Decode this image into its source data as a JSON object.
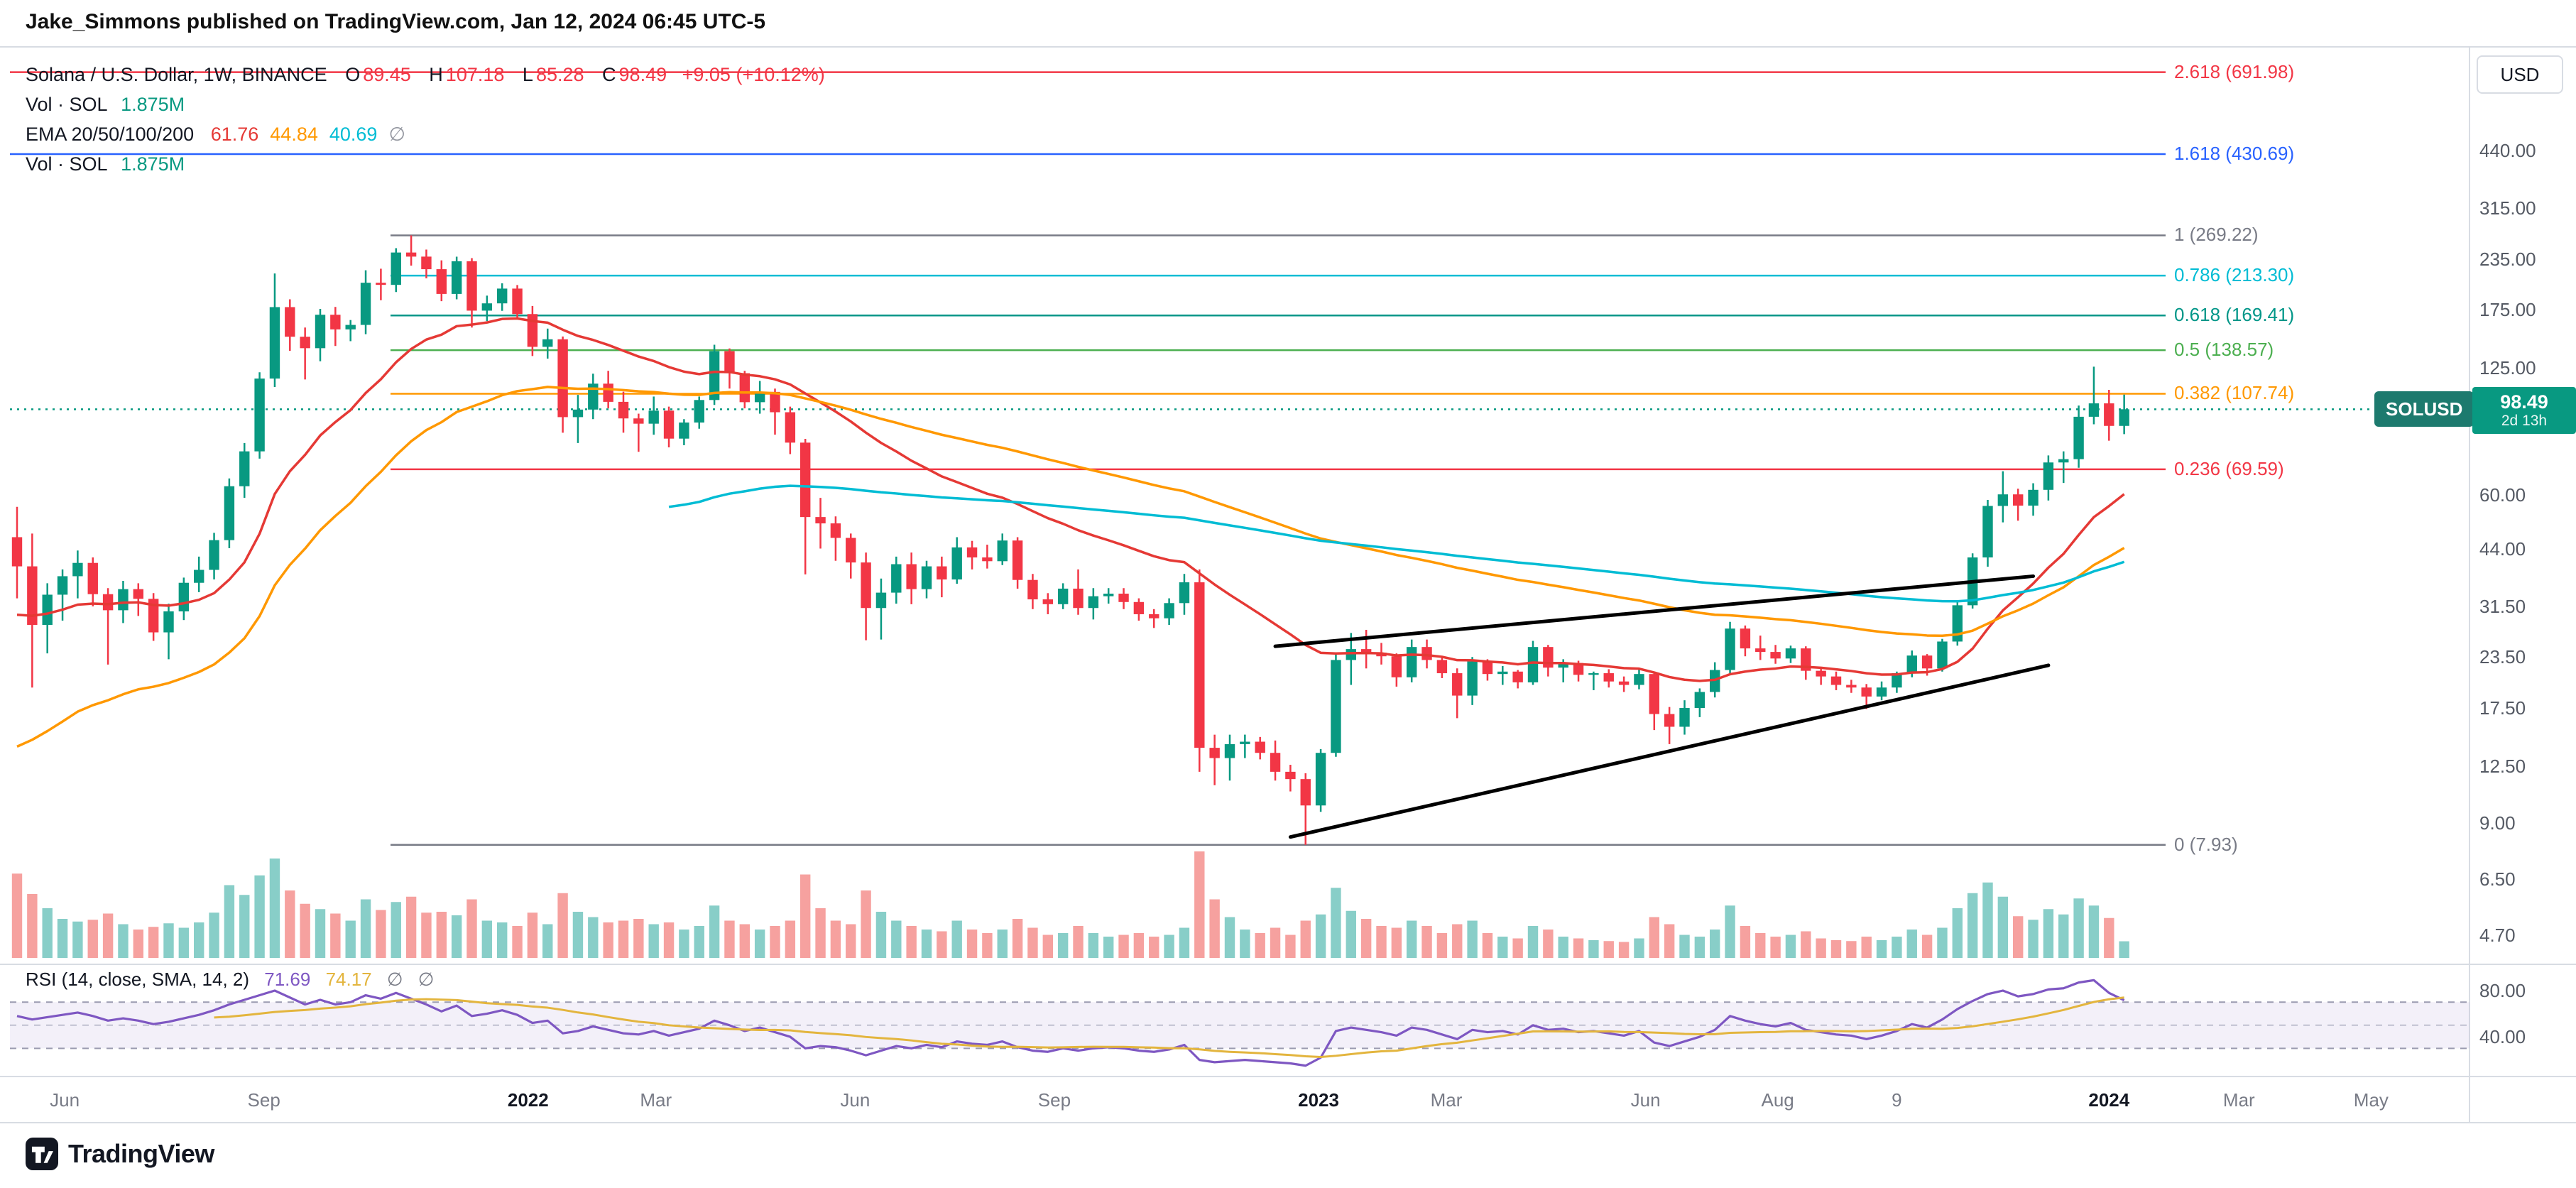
{
  "header": {
    "attribution": "Jake_Simmons published on TradingView.com, Jan 12, 2024 06:45 UTC-5"
  },
  "colors": {
    "up": "#089981",
    "down": "#f23645",
    "ema20": "#e53935",
    "ema50": "#ff9800",
    "ema100": "#00bcd4",
    "rsi": "#7e57c2",
    "rsi_sma": "#e3b53e",
    "badge_dark": "#1d7a6e",
    "text": "#131722",
    "muted": "#787b86",
    "separator": "#d8dce3",
    "vol_up": "rgba(38,166,154,0.55)",
    "vol_down": "rgba(239,83,80,0.55)",
    "rsi_band_fill": "rgba(126,87,194,0.09)",
    "rsi_band_line": "#9b9bb0"
  },
  "legend": {
    "symbol_title": "Solana / U.S. Dollar, 1W, BINANCE",
    "ohlc": {
      "o_label": "O",
      "open": "89.45",
      "h_label": "H",
      "high": "107.18",
      "l_label": "L",
      "low": "85.28",
      "c_label": "C",
      "close": "98.49",
      "change": "+9.05 (+10.12%)"
    },
    "vol_label": "Vol · SOL",
    "vol_value": "1.875M",
    "ema_label": "EMA 20/50/100/200",
    "ema_values": [
      {
        "value": "61.76",
        "color": "#e53935"
      },
      {
        "value": "44.84",
        "color": "#ff9800"
      },
      {
        "value": "40.69",
        "color": "#00bcd4"
      },
      {
        "value": "∅",
        "color": "#9598a1"
      }
    ],
    "vol2_label": "Vol · SOL",
    "vol2_value": "1.875M"
  },
  "rsi_legend": {
    "label": "RSI (14, close, SMA, 14, 2)",
    "value": "71.69",
    "sma_value": "74.17",
    "null1": "∅",
    "null2": "∅"
  },
  "price_axis": {
    "currency": "USD",
    "labels": [
      "440.00",
      "315.00",
      "235.00",
      "175.00",
      "125.00",
      "60.00",
      "44.00",
      "31.50",
      "23.50",
      "17.50",
      "12.50",
      "9.00",
      "6.50",
      "4.70"
    ]
  },
  "rsi_axis": [
    {
      "label": "80.00",
      "value": 80
    },
    {
      "label": "40.00",
      "value": 40
    }
  ],
  "price_tag": {
    "symbol": "SOLUSD",
    "price": "98.49",
    "countdown": "2d 13h"
  },
  "time_axis": [
    {
      "label": "Jun",
      "date": "2021-06-01",
      "major": false
    },
    {
      "label": "Sep",
      "date": "2021-09-01",
      "major": false
    },
    {
      "label": "2022",
      "date": "2022-01-01",
      "major": true
    },
    {
      "label": "Mar",
      "date": "2022-03-01",
      "major": false
    },
    {
      "label": "Jun",
      "date": "2022-06-01",
      "major": false
    },
    {
      "label": "Sep",
      "date": "2022-09-01",
      "major": false
    },
    {
      "label": "2023",
      "date": "2023-01-01",
      "major": true
    },
    {
      "label": "Mar",
      "date": "2023-03-01",
      "major": false
    },
    {
      "label": "Jun",
      "date": "2023-06-01",
      "major": false
    },
    {
      "label": "Aug",
      "date": "2023-08-01",
      "major": false
    },
    {
      "label": "9",
      "date": "2023-09-25",
      "major": false
    },
    {
      "label": "2024",
      "date": "2024-01-01",
      "major": true
    },
    {
      "label": "Mar",
      "date": "2024-03-01",
      "major": false
    },
    {
      "label": "May",
      "date": "2024-05-01",
      "major": false
    }
  ],
  "fib_levels": [
    {
      "label": "2.618 (691.98)",
      "price": 691.98,
      "color": "#f23645",
      "extend_left": true
    },
    {
      "label": "1.618 (430.69)",
      "price": 430.69,
      "color": "#2962ff",
      "extend_left": true
    },
    {
      "label": "1 (269.22)",
      "price": 269.22,
      "color": "#787b86",
      "extend_left": false
    },
    {
      "label": "0.786 (213.30)",
      "price": 213.3,
      "color": "#00bcd4",
      "extend_left": false
    },
    {
      "label": "0.618 (169.41)",
      "price": 169.41,
      "color": "#009688",
      "extend_left": false
    },
    {
      "label": "0.5 (138.57)",
      "price": 138.57,
      "color": "#4caf50",
      "extend_left": false
    },
    {
      "label": "0.382 (107.74)",
      "price": 107.74,
      "color": "#ff9800",
      "extend_left": false
    },
    {
      "label": "0.236 (69.59)",
      "price": 69.59,
      "color": "#f23645",
      "extend_left": false
    },
    {
      "label": "0 (7.93)",
      "price": 7.93,
      "color": "#787b86",
      "extend_left": false
    }
  ],
  "footer": {
    "brand": "TradingView"
  },
  "chart_data": {
    "type": "candlestick",
    "title": "Solana / U.S. Dollar",
    "symbol": "SOLUSD",
    "timeframe": "1W",
    "exchange": "BINANCE",
    "price_scale": "log",
    "current_price": 98.49,
    "fib_anchors": {
      "high": 269.22,
      "low": 7.93
    },
    "start_date": "2021-05-10",
    "interval_days": 7,
    "candles": [
      [
        47,
        56,
        33,
        39.7
      ],
      [
        39.7,
        48,
        19.7,
        28.3
      ],
      [
        28.3,
        36,
        24,
        33.7
      ],
      [
        33.7,
        39,
        29,
        37.5
      ],
      [
        37.5,
        43.5,
        33,
        40.5
      ],
      [
        40.5,
        41.8,
        31.5,
        33.8
      ],
      [
        33.8,
        35,
        22.5,
        30.8
      ],
      [
        30.8,
        36.5,
        28.6,
        34.8
      ],
      [
        34.8,
        36,
        29.8,
        32.9
      ],
      [
        32.9,
        34,
        25.8,
        27.1
      ],
      [
        27.1,
        32,
        23.2,
        30.6
      ],
      [
        30.6,
        37.2,
        29.1,
        36.1
      ],
      [
        36.1,
        42,
        34.2,
        38.9
      ],
      [
        38.9,
        48.2,
        36.8,
        46.2
      ],
      [
        46.2,
        66,
        44.1,
        63.1
      ],
      [
        63.1,
        81,
        59,
        77.2
      ],
      [
        77.2,
        122,
        74,
        117.6
      ],
      [
        117.6,
        216,
        112,
        177.8
      ],
      [
        177.8,
        186,
        138,
        149.8
      ],
      [
        149.8,
        158,
        117,
        140.2
      ],
      [
        140.2,
        176,
        130,
        170.1
      ],
      [
        170.1,
        178,
        142,
        156.3
      ],
      [
        156.3,
        165,
        146,
        160.4
      ],
      [
        160.4,
        220,
        152,
        204.7
      ],
      [
        204.7,
        222,
        185,
        202.2
      ],
      [
        202.2,
        250,
        194,
        243.8
      ],
      [
        243.8,
        269.22,
        226,
        238.1
      ],
      [
        238.1,
        248,
        210,
        221.4
      ],
      [
        221.4,
        233,
        184,
        191.9
      ],
      [
        191.9,
        238,
        186,
        231.8
      ],
      [
        231.8,
        236,
        158,
        174.2
      ],
      [
        174.2,
        190,
        164,
        181.7
      ],
      [
        181.7,
        204,
        174,
        197.9
      ],
      [
        197.9,
        202,
        166,
        170.8
      ],
      [
        170.8,
        179,
        134,
        141.3
      ],
      [
        141.3,
        157,
        132,
        147.6
      ],
      [
        147.6,
        150,
        86,
        94.1
      ],
      [
        94.1,
        107,
        81,
        98.3
      ],
      [
        98.3,
        121,
        93,
        114.2
      ],
      [
        114.2,
        123,
        99,
        102.8
      ],
      [
        102.8,
        109,
        86,
        93.4
      ],
      [
        93.4,
        96,
        77,
        90.6
      ],
      [
        90.6,
        106,
        85,
        97.7
      ],
      [
        97.7,
        100,
        79,
        83.1
      ],
      [
        83.1,
        93,
        80,
        91.2
      ],
      [
        91.2,
        106,
        88,
        103.9
      ],
      [
        103.9,
        143,
        101,
        137.8
      ],
      [
        137.8,
        140,
        111,
        121.3
      ],
      [
        121.3,
        123,
        99,
        102.6
      ],
      [
        102.6,
        116,
        96,
        108.9
      ],
      [
        108.9,
        111,
        85,
        96.8
      ],
      [
        96.8,
        100,
        76,
        81.2
      ],
      [
        81.2,
        83,
        37.9,
        52.8
      ],
      [
        52.8,
        59,
        44,
        50.9
      ],
      [
        50.9,
        53,
        41,
        46.8
      ],
      [
        46.8,
        48,
        37,
        40.6
      ],
      [
        40.6,
        43,
        25.9,
        31.2
      ],
      [
        31.2,
        37,
        26,
        34.1
      ],
      [
        34.1,
        42,
        32,
        40.2
      ],
      [
        40.2,
        43,
        31.9,
        34.8
      ],
      [
        34.8,
        41,
        33,
        39.7
      ],
      [
        39.7,
        42,
        33.2,
        36.8
      ],
      [
        36.8,
        47,
        35.9,
        44.3
      ],
      [
        44.3,
        46,
        39,
        41.8
      ],
      [
        41.8,
        45,
        39.2,
        40.9
      ],
      [
        40.9,
        48,
        40,
        46.1
      ],
      [
        46.1,
        47,
        34.9,
        36.7
      ],
      [
        36.7,
        38,
        31,
        32.8
      ],
      [
        32.8,
        34,
        30.1,
        31.9
      ],
      [
        31.9,
        36,
        31,
        34.9
      ],
      [
        34.9,
        39,
        30,
        31.2
      ],
      [
        31.2,
        35,
        29.2,
        33.4
      ],
      [
        33.4,
        35,
        32,
        33.9
      ],
      [
        33.9,
        35,
        31,
        32.3
      ],
      [
        32.3,
        33,
        29,
        30.1
      ],
      [
        30.1,
        31,
        27.8,
        29.4
      ],
      [
        29.4,
        33,
        28.3,
        32.1
      ],
      [
        32.1,
        38,
        30,
        36.2
      ],
      [
        36.2,
        39,
        12.1,
        13.9
      ],
      [
        13.9,
        15,
        11.2,
        13.1
      ],
      [
        13.1,
        15,
        11.5,
        14.2
      ],
      [
        14.2,
        15,
        13.1,
        14.4
      ],
      [
        14.4,
        14.8,
        13,
        13.5
      ],
      [
        13.5,
        14.5,
        11.5,
        12.1
      ],
      [
        12.1,
        12.6,
        10.8,
        11.6
      ],
      [
        11.6,
        12,
        7.93,
        9.96
      ],
      [
        9.96,
        13.8,
        9.6,
        13.5
      ],
      [
        13.5,
        24,
        13.2,
        23.1
      ],
      [
        23.1,
        27,
        20,
        24.6
      ],
      [
        24.6,
        27.5,
        22,
        24.1
      ],
      [
        24.1,
        25.5,
        22.5,
        23.6
      ],
      [
        23.6,
        24,
        19.8,
        20.9
      ],
      [
        20.9,
        26,
        20.3,
        24.9
      ],
      [
        24.9,
        26,
        22,
        23.1
      ],
      [
        23.1,
        23.5,
        20.8,
        21.4
      ],
      [
        21.4,
        22,
        16.5,
        18.8
      ],
      [
        18.8,
        23.5,
        17.8,
        22.9
      ],
      [
        22.9,
        23.2,
        20.5,
        21.3
      ],
      [
        21.3,
        22.3,
        20,
        21.6
      ],
      [
        21.6,
        21.8,
        19.6,
        20.3
      ],
      [
        20.3,
        25.8,
        20,
        24.9
      ],
      [
        24.9,
        25.2,
        21,
        22.1
      ],
      [
        22.1,
        23.2,
        20.3,
        22.7
      ],
      [
        22.7,
        23,
        20.4,
        21.2
      ],
      [
        21.2,
        21.6,
        19.4,
        21.4
      ],
      [
        21.4,
        21.9,
        19.7,
        20.4
      ],
      [
        20.4,
        21,
        19.2,
        20
      ],
      [
        20,
        22,
        19.5,
        21.3
      ],
      [
        21.3,
        21.4,
        15.4,
        16.9
      ],
      [
        16.9,
        17.6,
        14.2,
        15.7
      ],
      [
        15.7,
        18.3,
        15,
        17.5
      ],
      [
        17.5,
        19.6,
        16.6,
        19.2
      ],
      [
        19.2,
        22.8,
        18.6,
        21.8
      ],
      [
        21.8,
        28.8,
        21.2,
        27.7
      ],
      [
        27.7,
        28.2,
        23.6,
        24.7
      ],
      [
        24.7,
        26.6,
        23.1,
        24.2
      ],
      [
        24.2,
        25.2,
        22.6,
        23.3
      ],
      [
        23.3,
        25.1,
        22.7,
        24.7
      ],
      [
        24.7,
        25,
        20.6,
        21.7
      ],
      [
        21.7,
        22.2,
        20,
        21
      ],
      [
        21,
        21.6,
        19.4,
        20
      ],
      [
        20,
        20.6,
        19.1,
        19.7
      ],
      [
        19.7,
        20.1,
        17.4,
        18.7
      ],
      [
        18.7,
        20.4,
        18.3,
        19.7
      ],
      [
        19.7,
        21.6,
        19.1,
        21.4
      ],
      [
        21.4,
        24.4,
        20.9,
        23.7
      ],
      [
        23.7,
        23.9,
        21.1,
        22
      ],
      [
        22,
        26.1,
        21.6,
        25.7
      ],
      [
        25.7,
        32.6,
        25.1,
        31.7
      ],
      [
        31.7,
        42.8,
        31.1,
        41.8
      ],
      [
        41.8,
        58.3,
        39.6,
        56.3
      ],
      [
        56.3,
        68.8,
        51.2,
        60.2
      ],
      [
        60.2,
        62.2,
        51.7,
        56.4
      ],
      [
        56.4,
        64.2,
        53.2,
        61.8
      ],
      [
        61.8,
        75.4,
        58.1,
        72.4
      ],
      [
        72.4,
        77.2,
        64.3,
        73.8
      ],
      [
        73.8,
        100.6,
        70.2,
        94.3
      ],
      [
        94.3,
        126,
        90.3,
        101.9
      ],
      [
        101.9,
        110.2,
        82.1,
        89.45
      ],
      [
        89.45,
        107.18,
        85.28,
        98.49
      ]
    ],
    "volumes": [
      9.5,
      7.2,
      5.6,
      4.4,
      4.1,
      4.3,
      5.0,
      3.8,
      3.2,
      3.5,
      3.9,
      3.4,
      4.0,
      5.1,
      8.2,
      7.1,
      9.3,
      11.2,
      7.6,
      6.1,
      5.5,
      5.0,
      4.2,
      6.6,
      5.4,
      6.3,
      6.9,
      5.1,
      5.2,
      4.8,
      6.6,
      4.2,
      4.0,
      3.6,
      5.1,
      3.8,
      7.3,
      5.2,
      4.6,
      4.0,
      4.2,
      4.4,
      3.8,
      4.0,
      3.2,
      3.6,
      5.9,
      4.2,
      3.8,
      3.2,
      3.6,
      4.2,
      9.4,
      5.6,
      4.2,
      3.8,
      7.6,
      5.2,
      4.2,
      3.6,
      3.2,
      3.0,
      4.2,
      3.2,
      2.8,
      3.2,
      4.4,
      3.4,
      2.6,
      2.8,
      3.6,
      2.8,
      2.4,
      2.6,
      2.8,
      2.4,
      2.6,
      3.4,
      12.0,
      6.6,
      4.6,
      3.2,
      2.8,
      3.4,
      2.6,
      4.2,
      4.9,
      7.9,
      5.3,
      4.4,
      3.6,
      3.4,
      4.2,
      3.6,
      2.8,
      3.8,
      4.2,
      2.8,
      2.4,
      2.2,
      3.6,
      3.2,
      2.4,
      2.2,
      2.0,
      1.9,
      1.8,
      2.2,
      4.6,
      3.8,
      2.6,
      2.4,
      3.2,
      5.9,
      3.6,
      2.8,
      2.4,
      2.6,
      3.0,
      2.2,
      2.0,
      1.9,
      2.4,
      2.0,
      2.4,
      3.2,
      2.6,
      3.4,
      5.6,
      7.3,
      8.5,
      6.9,
      4.7,
      4.3,
      5.5,
      4.9,
      6.7,
      5.9,
      4.5,
      1.875
    ],
    "rsi": [
      58,
      55,
      57,
      59,
      61,
      58,
      54,
      56,
      54,
      51,
      53,
      56,
      59,
      63,
      68,
      72,
      76,
      80,
      74,
      68,
      72,
      68,
      70,
      76,
      73,
      78,
      73,
      68,
      62,
      67,
      58,
      60,
      63,
      59,
      52,
      54,
      43,
      45,
      49,
      46,
      43,
      42,
      45,
      41,
      44,
      47,
      54,
      50,
      45,
      48,
      44,
      40,
      30,
      32,
      31,
      28,
      24,
      28,
      32,
      30,
      33,
      31,
      36,
      34,
      33,
      36,
      31,
      28,
      27,
      30,
      28,
      30,
      31,
      30,
      28,
      27,
      29,
      33,
      20,
      18,
      19,
      20,
      19,
      18,
      17,
      15,
      22,
      45,
      48,
      46,
      44,
      41,
      48,
      46,
      42,
      38,
      46,
      44,
      45,
      42,
      50,
      46,
      47,
      44,
      45,
      43,
      41,
      45,
      35,
      32,
      36,
      40,
      46,
      58,
      54,
      51,
      49,
      52,
      46,
      44,
      42,
      41,
      38,
      41,
      45,
      51,
      48,
      55,
      64,
      71,
      77,
      80,
      75,
      77,
      81,
      82,
      87,
      89,
      78,
      71.69
    ],
    "rsi_band": {
      "upper": 70,
      "middle": 50,
      "lower": 30
    },
    "emas": [
      {
        "period": 20,
        "color": "#e53935",
        "seed": 30,
        "start": 0
      },
      {
        "period": 50,
        "color": "#ff9800",
        "seed": 14,
        "start": 0
      },
      {
        "period": 100,
        "color": "#00bcd4",
        "seed": 56,
        "start": 43
      }
    ],
    "trendlines": [
      {
        "d1": "2022-12-12",
        "p1": 25.0,
        "d2": "2023-11-27",
        "p2": 37.5,
        "color": "#000000",
        "width": 5
      },
      {
        "d1": "2022-12-19",
        "p1": 8.3,
        "d2": "2023-12-04",
        "p2": 22.4,
        "color": "#000000",
        "width": 5
      }
    ]
  }
}
